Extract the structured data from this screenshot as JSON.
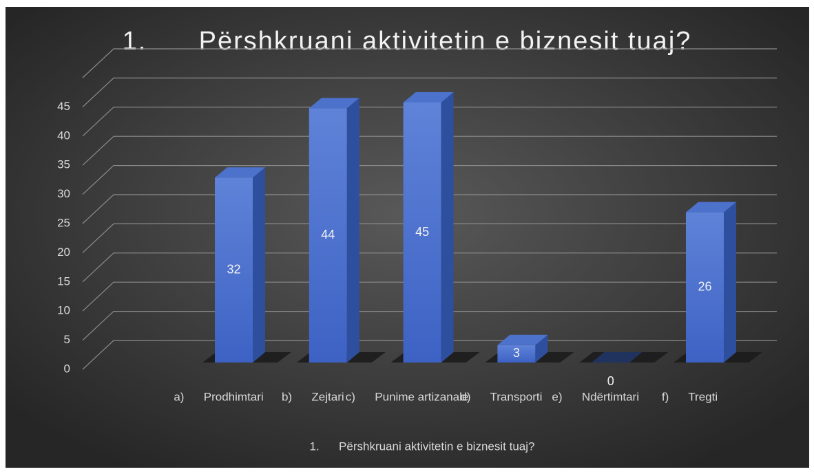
{
  "chart_data": {
    "type": "bar3d",
    "title": "1.      Përshkruani aktivitetin e biznesit tuaj?",
    "x_label": "1.      Përshkruani aktivitetin e biznesit tuaj?",
    "categories": [
      "a)      Prodhimtari",
      "b)      Zejtari",
      "c)      Punime artizanale",
      "d)      Transporti",
      "e)      Ndërtimtari",
      "f)      Tregti"
    ],
    "values": [
      32,
      44,
      45,
      3,
      0,
      26
    ],
    "color": "#4f74d0",
    "ylim": [
      0,
      50
    ],
    "yticks": [
      0,
      5,
      10,
      15,
      20,
      25,
      30,
      35,
      40,
      45
    ],
    "grid": true
  }
}
